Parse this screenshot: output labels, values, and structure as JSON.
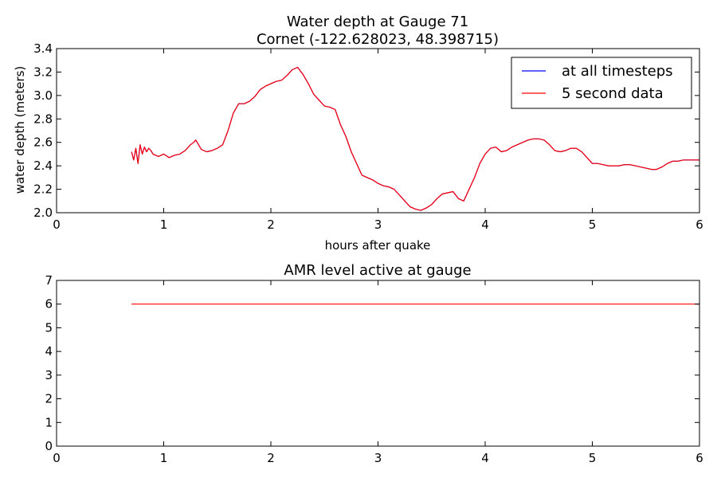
{
  "chart_data": [
    {
      "type": "line",
      "title": "Water depth at Gauge 71",
      "subtitle": "Cornet  (-122.628023, 48.398715)",
      "xlabel": "hours after quake",
      "ylabel": "water depth (meters)",
      "xlim": [
        0,
        6
      ],
      "ylim": [
        2.0,
        3.4
      ],
      "x_ticks": [
        "0",
        "1",
        "2",
        "3",
        "4",
        "5",
        "6"
      ],
      "y_ticks": [
        "2.0",
        "2.2",
        "2.4",
        "2.6",
        "2.8",
        "3.0",
        "3.2",
        "3.4"
      ],
      "legend_position": "top-right",
      "grid": false,
      "series": [
        {
          "name": "at all timesteps",
          "color": "#0000ff",
          "x": [
            0.7,
            0.72,
            0.74,
            0.76,
            0.78,
            0.8,
            0.82,
            0.84,
            0.86,
            0.88,
            0.9,
            0.95,
            1.0,
            1.05,
            1.1,
            1.15,
            1.2,
            1.25,
            1.28,
            1.3,
            1.35,
            1.4,
            1.45,
            1.5,
            1.55,
            1.6,
            1.65,
            1.7,
            1.75,
            1.8,
            1.85,
            1.9,
            1.95,
            2.0,
            2.05,
            2.1,
            2.15,
            2.2,
            2.25,
            2.3,
            2.35,
            2.4,
            2.45,
            2.5,
            2.55,
            2.6,
            2.65,
            2.7,
            2.75,
            2.8,
            2.85,
            2.9,
            2.95,
            3.0,
            3.05,
            3.1,
            3.15,
            3.2,
            3.25,
            3.3,
            3.35,
            3.4,
            3.45,
            3.5,
            3.55,
            3.6,
            3.65,
            3.7,
            3.75,
            3.8,
            3.85,
            3.9,
            3.95,
            4.0,
            4.05,
            4.1,
            4.15,
            4.2,
            4.25,
            4.3,
            4.35,
            4.4,
            4.45,
            4.5,
            4.55,
            4.6,
            4.65,
            4.7,
            4.75,
            4.8,
            4.85,
            4.9,
            4.95,
            5.0,
            5.05,
            5.1,
            5.15,
            5.2,
            5.25,
            5.3,
            5.35,
            5.4,
            5.45,
            5.5,
            5.55,
            5.6,
            5.65,
            5.7,
            5.75,
            5.8,
            5.85,
            5.9,
            5.95,
            6.0
          ],
          "values": [
            2.52,
            2.45,
            2.55,
            2.42,
            2.58,
            2.5,
            2.56,
            2.52,
            2.55,
            2.53,
            2.5,
            2.48,
            2.5,
            2.47,
            2.49,
            2.5,
            2.53,
            2.58,
            2.6,
            2.62,
            2.54,
            2.52,
            2.53,
            2.55,
            2.58,
            2.7,
            2.85,
            2.93,
            2.93,
            2.95,
            2.99,
            3.05,
            3.08,
            3.1,
            3.12,
            3.13,
            3.17,
            3.22,
            3.24,
            3.18,
            3.1,
            3.01,
            2.96,
            2.91,
            2.9,
            2.88,
            2.75,
            2.65,
            2.52,
            2.42,
            2.32,
            2.3,
            2.28,
            2.25,
            2.23,
            2.22,
            2.2,
            2.15,
            2.1,
            2.05,
            2.03,
            2.02,
            2.04,
            2.07,
            2.12,
            2.16,
            2.17,
            2.18,
            2.12,
            2.1,
            2.2,
            2.3,
            2.42,
            2.5,
            2.55,
            2.56,
            2.52,
            2.53,
            2.56,
            2.58,
            2.6,
            2.62,
            2.63,
            2.63,
            2.62,
            2.58,
            2.53,
            2.52,
            2.53,
            2.55,
            2.55,
            2.52,
            2.47,
            2.42,
            2.42,
            2.41,
            2.4,
            2.4,
            2.4,
            2.41,
            2.41,
            2.4,
            2.39,
            2.38,
            2.37,
            2.37,
            2.39,
            2.42,
            2.44,
            2.44,
            2.45,
            2.45,
            2.45,
            2.45
          ]
        },
        {
          "name": "5 second data",
          "color": "#ff0000",
          "x": [
            0.7,
            0.72,
            0.74,
            0.76,
            0.78,
            0.8,
            0.82,
            0.84,
            0.86,
            0.88,
            0.9,
            0.95,
            1.0,
            1.05,
            1.1,
            1.15,
            1.2,
            1.25,
            1.28,
            1.3,
            1.35,
            1.4,
            1.45,
            1.5,
            1.55,
            1.6,
            1.65,
            1.7,
            1.75,
            1.8,
            1.85,
            1.9,
            1.95,
            2.0,
            2.05,
            2.1,
            2.15,
            2.2,
            2.25,
            2.3,
            2.35,
            2.4,
            2.45,
            2.5,
            2.55,
            2.6,
            2.65,
            2.7,
            2.75,
            2.8,
            2.85,
            2.9,
            2.95,
            3.0,
            3.05,
            3.1,
            3.15,
            3.2,
            3.25,
            3.3,
            3.35,
            3.4,
            3.45,
            3.5,
            3.55,
            3.6,
            3.65,
            3.7,
            3.75,
            3.8,
            3.85,
            3.9,
            3.95,
            4.0,
            4.05,
            4.1,
            4.15,
            4.2,
            4.25,
            4.3,
            4.35,
            4.4,
            4.45,
            4.5,
            4.55,
            4.6,
            4.65,
            4.7,
            4.75,
            4.8,
            4.85,
            4.9,
            4.95,
            5.0,
            5.05,
            5.1,
            5.15,
            5.2,
            5.25,
            5.3,
            5.35,
            5.4,
            5.45,
            5.5,
            5.55,
            5.6,
            5.65,
            5.7,
            5.75,
            5.8,
            5.85,
            5.9,
            5.95,
            6.0
          ],
          "values": [
            2.52,
            2.45,
            2.55,
            2.42,
            2.58,
            2.5,
            2.56,
            2.52,
            2.55,
            2.53,
            2.5,
            2.48,
            2.5,
            2.47,
            2.49,
            2.5,
            2.53,
            2.58,
            2.6,
            2.62,
            2.54,
            2.52,
            2.53,
            2.55,
            2.58,
            2.7,
            2.85,
            2.93,
            2.93,
            2.95,
            2.99,
            3.05,
            3.08,
            3.1,
            3.12,
            3.13,
            3.17,
            3.22,
            3.24,
            3.18,
            3.1,
            3.01,
            2.96,
            2.91,
            2.9,
            2.88,
            2.75,
            2.65,
            2.52,
            2.42,
            2.32,
            2.3,
            2.28,
            2.25,
            2.23,
            2.22,
            2.2,
            2.15,
            2.1,
            2.05,
            2.03,
            2.02,
            2.04,
            2.07,
            2.12,
            2.16,
            2.17,
            2.18,
            2.12,
            2.1,
            2.2,
            2.3,
            2.42,
            2.5,
            2.55,
            2.56,
            2.52,
            2.53,
            2.56,
            2.58,
            2.6,
            2.62,
            2.63,
            2.63,
            2.62,
            2.58,
            2.53,
            2.52,
            2.53,
            2.55,
            2.55,
            2.52,
            2.47,
            2.42,
            2.42,
            2.41,
            2.4,
            2.4,
            2.4,
            2.41,
            2.41,
            2.4,
            2.39,
            2.38,
            2.37,
            2.37,
            2.39,
            2.42,
            2.44,
            2.44,
            2.45,
            2.45,
            2.45,
            2.45
          ]
        }
      ]
    },
    {
      "type": "line",
      "title": "AMR level active at gauge",
      "xlabel": "",
      "ylabel": "",
      "xlim": [
        0,
        6
      ],
      "ylim": [
        0,
        7
      ],
      "x_ticks": [
        "0",
        "1",
        "2",
        "3",
        "4",
        "5",
        "6"
      ],
      "y_ticks": [
        "0",
        "1",
        "2",
        "3",
        "4",
        "5",
        "6",
        "7"
      ],
      "grid": false,
      "series": [
        {
          "color": "#ff0000",
          "x": [
            0.7,
            6.0
          ],
          "values": [
            6,
            6
          ]
        }
      ]
    }
  ]
}
